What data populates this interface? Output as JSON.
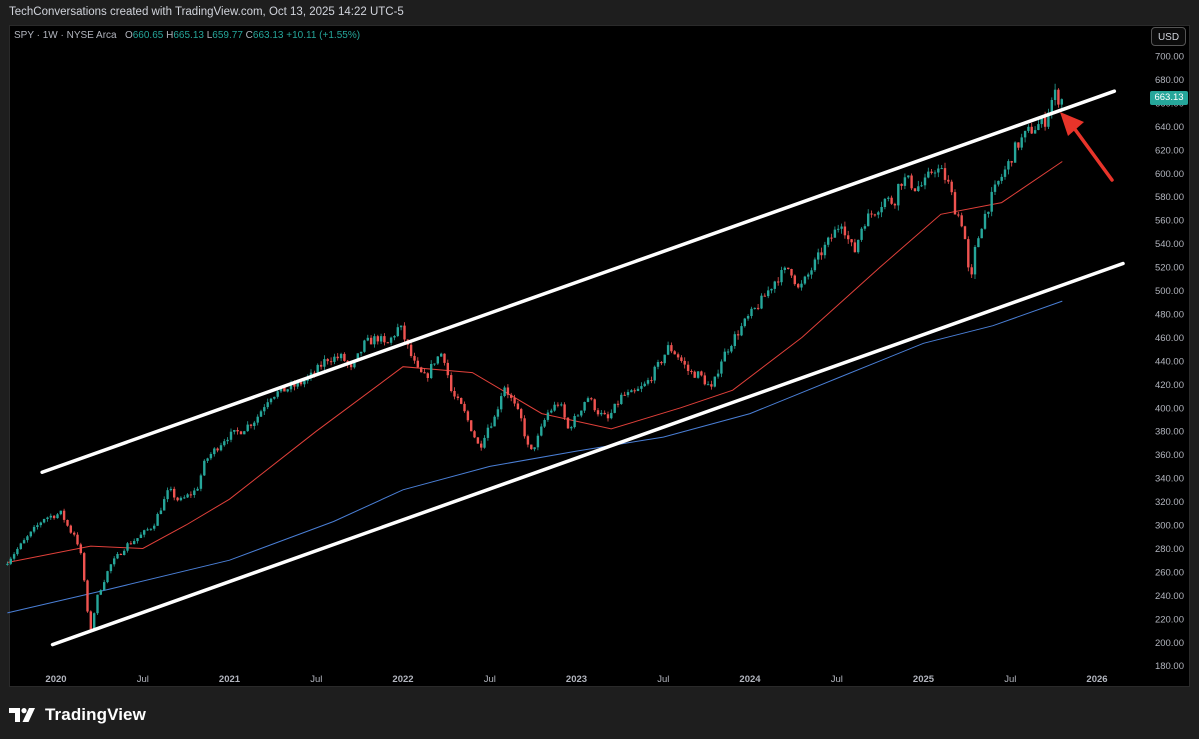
{
  "credit": "TechConversations created with TradingView.com, Oct 13, 2025 14:22 UTC-5",
  "legend": {
    "symbol": "SPY · 1W · NYSE Arca",
    "o_label": "O",
    "o_value": "660.65",
    "h_label": "H",
    "h_value": "665.13",
    "l_label": "L",
    "l_value": "659.77",
    "c_label": "C",
    "c_value": "663.13",
    "change": "+10.11 (+1.55%)"
  },
  "currency_button": "USD",
  "price_tag": "663.13",
  "brand": "TradingView",
  "colors": {
    "up": "#26a69a",
    "down": "#ef5350",
    "ma_red": "#e0403a",
    "ma_blue": "#4a7fd6",
    "channel": "#ffffff",
    "arrow": "#e8342a"
  },
  "chart_data": {
    "type": "candlestick",
    "symbol": "SPY",
    "interval": "1W",
    "exchange": "NYSE Arca",
    "y_axis_ticks": [
      "700.00",
      "680.00",
      "660.00",
      "640.00",
      "620.00",
      "600.00",
      "580.00",
      "560.00",
      "540.00",
      "520.00",
      "500.00",
      "480.00",
      "460.00",
      "440.00",
      "420.00",
      "400.00",
      "380.00",
      "360.00",
      "340.00",
      "320.00",
      "300.00",
      "280.00",
      "260.00",
      "240.00",
      "220.00",
      "200.00",
      "180.00"
    ],
    "x_axis_ticks": [
      "2020",
      "Jul",
      "2021",
      "Jul",
      "2022",
      "Jul",
      "2023",
      "Jul",
      "2024",
      "Jul",
      "2025",
      "Jul",
      "2026"
    ],
    "ylim": [
      175,
      710
    ],
    "xlim": [
      2019.7,
      2026.35
    ],
    "y_scale": "linear",
    "grid": false,
    "last_close": 663.13,
    "price_path": [
      [
        2019.72,
        266
      ],
      [
        2019.95,
        306
      ],
      [
        2020.05,
        310
      ],
      [
        2020.1,
        295
      ],
      [
        2020.13,
        292
      ],
      [
        2020.17,
        270
      ],
      [
        2020.2,
        225
      ],
      [
        2020.22,
        212
      ],
      [
        2020.26,
        240
      ],
      [
        2020.33,
        265
      ],
      [
        2020.42,
        282
      ],
      [
        2020.5,
        290
      ],
      [
        2020.58,
        300
      ],
      [
        2020.67,
        330
      ],
      [
        2020.73,
        320
      ],
      [
        2020.83,
        330
      ],
      [
        2020.88,
        355
      ],
      [
        2021.0,
        375
      ],
      [
        2021.08,
        380
      ],
      [
        2021.17,
        390
      ],
      [
        2021.25,
        410
      ],
      [
        2021.33,
        415
      ],
      [
        2021.42,
        420
      ],
      [
        2021.5,
        428
      ],
      [
        2021.58,
        442
      ],
      [
        2021.67,
        443
      ],
      [
        2021.72,
        432
      ],
      [
        2021.8,
        455
      ],
      [
        2021.88,
        460
      ],
      [
        2021.92,
        452
      ],
      [
        2022.0,
        470
      ],
      [
        2022.05,
        450
      ],
      [
        2022.1,
        432
      ],
      [
        2022.15,
        425
      ],
      [
        2022.2,
        440
      ],
      [
        2022.25,
        448
      ],
      [
        2022.3,
        412
      ],
      [
        2022.36,
        400
      ],
      [
        2022.42,
        380
      ],
      [
        2022.46,
        365
      ],
      [
        2022.5,
        382
      ],
      [
        2022.55,
        392
      ],
      [
        2022.6,
        420
      ],
      [
        2022.65,
        405
      ],
      [
        2022.7,
        390
      ],
      [
        2022.75,
        360
      ],
      [
        2022.8,
        375
      ],
      [
        2022.85,
        395
      ],
      [
        2022.92,
        405
      ],
      [
        2022.97,
        382
      ],
      [
        2023.03,
        395
      ],
      [
        2023.08,
        410
      ],
      [
        2023.15,
        395
      ],
      [
        2023.2,
        390
      ],
      [
        2023.28,
        410
      ],
      [
        2023.35,
        412
      ],
      [
        2023.42,
        420
      ],
      [
        2023.5,
        438
      ],
      [
        2023.55,
        452
      ],
      [
        2023.6,
        445
      ],
      [
        2023.67,
        430
      ],
      [
        2023.73,
        428
      ],
      [
        2023.8,
        415
      ],
      [
        2023.85,
        440
      ],
      [
        2023.92,
        458
      ],
      [
        2024.0,
        475
      ],
      [
        2024.08,
        490
      ],
      [
        2024.17,
        510
      ],
      [
        2024.25,
        520
      ],
      [
        2024.3,
        500
      ],
      [
        2024.35,
        512
      ],
      [
        2024.42,
        530
      ],
      [
        2024.5,
        548
      ],
      [
        2024.55,
        560
      ],
      [
        2024.58,
        545
      ],
      [
        2024.62,
        532
      ],
      [
        2024.67,
        558
      ],
      [
        2024.75,
        570
      ],
      [
        2024.8,
        578
      ],
      [
        2024.85,
        575
      ],
      [
        2024.88,
        593
      ],
      [
        2024.92,
        595
      ],
      [
        2024.97,
        588
      ],
      [
        2025.02,
        590
      ],
      [
        2025.08,
        605
      ],
      [
        2025.13,
        600
      ],
      [
        2025.17,
        588
      ],
      [
        2025.2,
        570
      ],
      [
        2025.25,
        555
      ],
      [
        2025.27,
        528
      ],
      [
        2025.29,
        500
      ],
      [
        2025.31,
        530
      ],
      [
        2025.35,
        555
      ],
      [
        2025.4,
        575
      ],
      [
        2025.45,
        592
      ],
      [
        2025.5,
        605
      ],
      [
        2025.55,
        622
      ],
      [
        2025.62,
        635
      ],
      [
        2025.67,
        640
      ],
      [
        2025.72,
        645
      ],
      [
        2025.75,
        660
      ],
      [
        2025.78,
        668
      ],
      [
        2025.8,
        663.13
      ]
    ],
    "moving_averages": [
      {
        "color": "red",
        "values": [
          [
            2019.72,
            268
          ],
          [
            2020.2,
            282
          ],
          [
            2020.5,
            280
          ],
          [
            2020.75,
            300
          ],
          [
            2021.0,
            322
          ],
          [
            2021.5,
            380
          ],
          [
            2022.0,
            435
          ],
          [
            2022.4,
            430
          ],
          [
            2022.8,
            395
          ],
          [
            2023.2,
            382
          ],
          [
            2023.6,
            400
          ],
          [
            2023.9,
            415
          ],
          [
            2024.3,
            460
          ],
          [
            2024.75,
            520
          ],
          [
            2025.1,
            565
          ],
          [
            2025.45,
            575
          ],
          [
            2025.8,
            610
          ]
        ]
      },
      {
        "color": "blue",
        "values": [
          [
            2019.72,
            225
          ],
          [
            2020.3,
            245
          ],
          [
            2021.0,
            270
          ],
          [
            2021.6,
            303
          ],
          [
            2022.0,
            330
          ],
          [
            2022.5,
            350
          ],
          [
            2023.0,
            363
          ],
          [
            2023.5,
            375
          ],
          [
            2024.0,
            395
          ],
          [
            2024.5,
            425
          ],
          [
            2025.0,
            455
          ],
          [
            2025.4,
            470
          ],
          [
            2025.8,
            491
          ]
        ]
      }
    ],
    "channel_lines": [
      {
        "x1": 2019.92,
        "y1": 345,
        "x2": 2026.1,
        "y2": 670
      },
      {
        "x1": 2019.98,
        "y1": 198,
        "x2": 2026.15,
        "y2": 523
      }
    ]
  }
}
